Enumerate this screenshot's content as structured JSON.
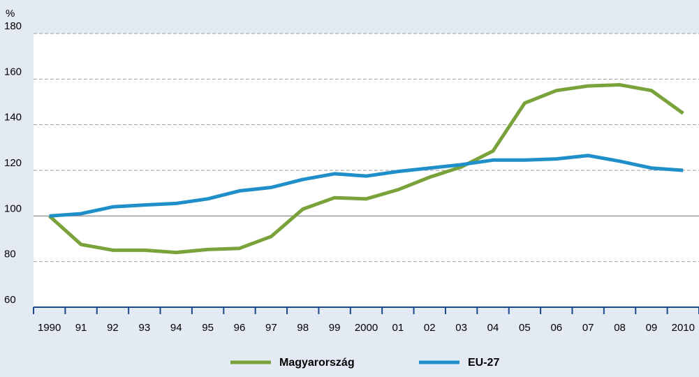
{
  "chart_data": {
    "type": "line",
    "y_label": "%",
    "categories": [
      "1990",
      "91",
      "92",
      "93",
      "94",
      "95",
      "96",
      "97",
      "98",
      "99",
      "2000",
      "01",
      "02",
      "03",
      "04",
      "05",
      "06",
      "07",
      "08",
      "09",
      "2010"
    ],
    "series": [
      {
        "name": "Magyarország",
        "color": "#7aa23a",
        "values": [
          100,
          87.5,
          85,
          85,
          84,
          85.3,
          85.8,
          91,
          103,
          108,
          107.5,
          111.5,
          117,
          121.5,
          128.5,
          149.5,
          155,
          157,
          157.5,
          155,
          145
        ]
      },
      {
        "name": "EU-27",
        "color": "#1f8fc9",
        "values": [
          100,
          101,
          104,
          104.8,
          105.5,
          107.5,
          111,
          112.5,
          116,
          118.5,
          117.5,
          119.5,
          121,
          122.5,
          124.5,
          124.5,
          125,
          126.5,
          124,
          121,
          120
        ]
      }
    ],
    "ylim": [
      60,
      180
    ],
    "yticks": [
      60,
      80,
      100,
      120,
      140,
      160,
      180
    ],
    "grid": true,
    "reference_line": 100
  }
}
